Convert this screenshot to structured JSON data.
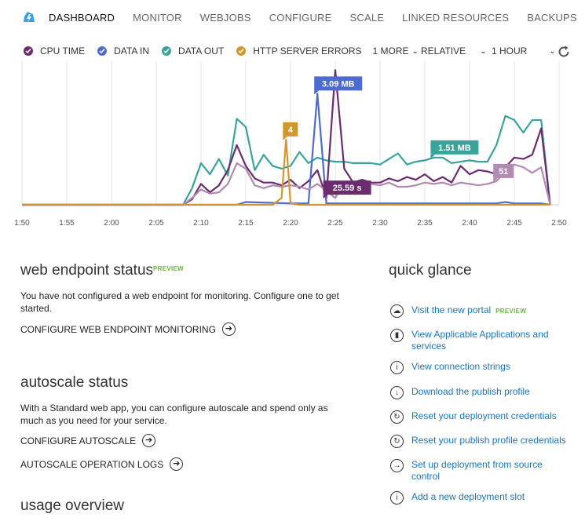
{
  "nav": {
    "tabs": [
      {
        "label": "DASHBOARD",
        "active": true
      },
      {
        "label": "MONITOR",
        "active": false
      },
      {
        "label": "WEBJOBS",
        "active": false
      },
      {
        "label": "CONFIGURE",
        "active": false
      },
      {
        "label": "SCALE",
        "active": false
      },
      {
        "label": "LINKED RESOURCES",
        "active": false
      },
      {
        "label": "BACKUPS",
        "active": false
      }
    ]
  },
  "legend": {
    "items": [
      {
        "label": "CPU TIME",
        "color": "#6b2c6e"
      },
      {
        "label": "DATA IN",
        "color": "#4d6bd0"
      },
      {
        "label": "DATA OUT",
        "color": "#3aa39a"
      },
      {
        "label": "HTTP SERVER ERRORS",
        "color": "#d1962d"
      }
    ],
    "more": "1 MORE",
    "relative": "RELATIVE",
    "range": "1 HOUR"
  },
  "chart_data": {
    "type": "line",
    "title": "",
    "x": [
      "1:50",
      "1:55",
      "2:00",
      "2:05",
      "2:10",
      "2:15",
      "2:20",
      "2:25",
      "2:30",
      "2:35",
      "2:40",
      "2:45",
      "2:50"
    ],
    "xlabel": "",
    "ylabel": "",
    "normalized": true,
    "series": [
      {
        "name": "DATA OUT",
        "color": "#3aa39a",
        "callout": "1.51 MB",
        "callout_at": 46,
        "t": [
          0,
          18,
          19,
          20,
          21,
          22,
          23,
          24,
          25,
          26,
          27,
          28,
          29,
          30,
          31,
          32,
          33,
          34,
          35,
          36,
          37,
          38,
          39,
          40,
          41,
          42,
          43,
          44,
          45,
          46,
          47,
          48,
          49,
          50,
          51,
          52,
          53,
          54,
          55,
          56,
          57,
          58,
          59
        ],
        "v": [
          0,
          0,
          0.12,
          0.3,
          0.22,
          0.33,
          0.21,
          0.62,
          0.56,
          0.25,
          0.36,
          0.28,
          0.26,
          0.28,
          0.38,
          0.3,
          0.34,
          0.32,
          0.31,
          0.31,
          0.3,
          0.3,
          0.3,
          0.29,
          0.33,
          0.37,
          0.29,
          0.31,
          0.32,
          0.34,
          0.34,
          0.3,
          0.31,
          0.32,
          0.31,
          0.31,
          0.43,
          0.64,
          0.61,
          0.52,
          0.61,
          0.61,
          0
        ]
      },
      {
        "name": "CPU TIME",
        "color": "#6b2c6e",
        "callout": "25.59 s",
        "callout_at": 34,
        "t": [
          0,
          18,
          19,
          20,
          21,
          22,
          23,
          24,
          25,
          26,
          27,
          28,
          29,
          30,
          31,
          32,
          33,
          34,
          35,
          36,
          37,
          38,
          39,
          40,
          41,
          42,
          43,
          44,
          45,
          46,
          47,
          48,
          49,
          50,
          51,
          52,
          53,
          54,
          55,
          56,
          57,
          58,
          59
        ],
        "v": [
          0,
          0,
          0.04,
          0.15,
          0.09,
          0.14,
          0.25,
          0.43,
          0.28,
          0.19,
          0.16,
          0.16,
          0.14,
          0.18,
          0.12,
          0.17,
          0.25,
          0.05,
          0.97,
          0.26,
          0.16,
          0.18,
          0.16,
          0.16,
          0.19,
          0.17,
          0.2,
          0.18,
          0.22,
          0.17,
          0.2,
          0.16,
          0.28,
          0.22,
          0.25,
          0.24,
          0.22,
          0.27,
          0.34,
          0.33,
          0.36,
          0.55,
          0
        ]
      },
      {
        "name": "DATA IN",
        "color": "#4d6bd0",
        "callout": "3.09 MB",
        "callout_at": 33,
        "t": [
          0,
          24,
          25,
          30,
          31,
          32,
          33,
          34,
          35,
          36,
          51,
          52,
          53,
          54,
          55,
          56,
          57,
          58,
          59
        ],
        "v": [
          0,
          0,
          0.02,
          0.01,
          0.01,
          0.01,
          0.8,
          0.01,
          0.01,
          0.01,
          0.01,
          0.01,
          0.01,
          0.02,
          0.01,
          0.01,
          0.01,
          0.01,
          0
        ]
      },
      {
        "name": "CPU TIME (scaled)",
        "color": "#b18ab2",
        "callout": "51",
        "callout_at": 53,
        "t": [
          0,
          18,
          19,
          20,
          21,
          22,
          23,
          24,
          25,
          26,
          27,
          28,
          29,
          30,
          31,
          32,
          33,
          34,
          35,
          36,
          37,
          38,
          39,
          40,
          41,
          42,
          43,
          44,
          45,
          46,
          47,
          48,
          49,
          50,
          51,
          52,
          53,
          54,
          55,
          56,
          57,
          58,
          59
        ],
        "v": [
          0,
          0,
          0.05,
          0.11,
          0.08,
          0.09,
          0.15,
          0.3,
          0.26,
          0.14,
          0.12,
          0.14,
          0.13,
          0.14,
          0.13,
          0.11,
          0.15,
          0.1,
          0.05,
          0.16,
          0.14,
          0.16,
          0.15,
          0.14,
          0.16,
          0.13,
          0.13,
          0.14,
          0.16,
          0.15,
          0.16,
          0.14,
          0.16,
          0.15,
          0.14,
          0.15,
          0.17,
          0.24,
          0.29,
          0.27,
          0.23,
          0.27,
          0
        ]
      },
      {
        "name": "HTTP SERVER ERRORS",
        "color": "#d1962d",
        "callout": "4",
        "callout_at": 29.5,
        "t": [
          0,
          28,
          29,
          29.5,
          30,
          31,
          59
        ],
        "v": [
          0,
          0,
          0.05,
          0.47,
          0.01,
          0,
          0
        ]
      }
    ],
    "ylim": [
      0,
      1
    ],
    "grid": true
  },
  "endpoint": {
    "title": "web endpoint status",
    "badge": "PREVIEW",
    "text": "You have not configured a web endpoint for monitoring. Configure one to get started.",
    "action": "CONFIGURE WEB ENDPOINT MONITORING"
  },
  "autoscale": {
    "title": "autoscale status",
    "text": "With a Standard web app, you can configure autoscale and spend only as much as you need for your service.",
    "action1": "CONFIGURE AUTOSCALE",
    "action2": "AUTOSCALE OPERATION LOGS"
  },
  "usage": {
    "title": "usage overview"
  },
  "quick_glance": {
    "title": "quick glance",
    "items": [
      {
        "label": "Visit the new portal",
        "badge": "PREVIEW",
        "icon": "cloud-icon",
        "glyph": "☁"
      },
      {
        "label": "View Applicable Applications and services",
        "icon": "bag-icon",
        "glyph": "▮"
      },
      {
        "label": "View connection strings",
        "icon": "info-icon",
        "glyph": "i"
      },
      {
        "label": "Download the publish profile",
        "icon": "download-icon",
        "glyph": "↓"
      },
      {
        "label": "Reset your deployment credentials",
        "icon": "reset-icon",
        "glyph": "↻"
      },
      {
        "label": "Reset your publish profile credentials",
        "icon": "reset-icon",
        "glyph": "↻"
      },
      {
        "label": "Set up deployment from source control",
        "icon": "arrow-right-icon",
        "glyph": "→"
      },
      {
        "label": "Add a new deployment slot",
        "icon": "info-icon",
        "glyph": "i"
      }
    ]
  }
}
